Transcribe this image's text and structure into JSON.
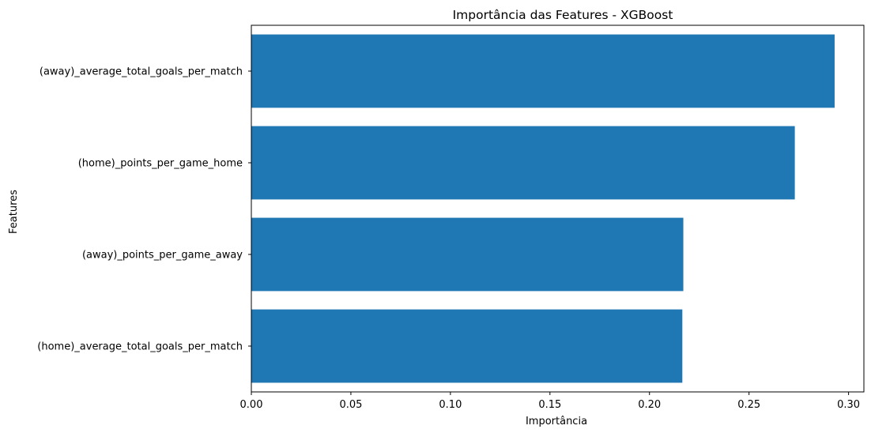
{
  "chart_data": {
    "type": "bar",
    "orientation": "horizontal",
    "title": "Importância das Features - XGBoost",
    "xlabel": "Importância",
    "ylabel": "Features",
    "categories": [
      "(home)_average_total_goals_per_match",
      "(away)_points_per_game_away",
      "(home)_points_per_game_home",
      "(away)_average_total_goals_per_match"
    ],
    "values": [
      0.2165,
      0.217,
      0.273,
      0.293
    ],
    "xlim": [
      0.0,
      0.3077
    ],
    "xticks": [
      0.0,
      0.05,
      0.1,
      0.15,
      0.2,
      0.25,
      0.3
    ],
    "xtick_labels": [
      "0.00",
      "0.05",
      "0.10",
      "0.15",
      "0.20",
      "0.25",
      "0.30"
    ],
    "grid": false,
    "bar_color": "#1f77b4"
  }
}
